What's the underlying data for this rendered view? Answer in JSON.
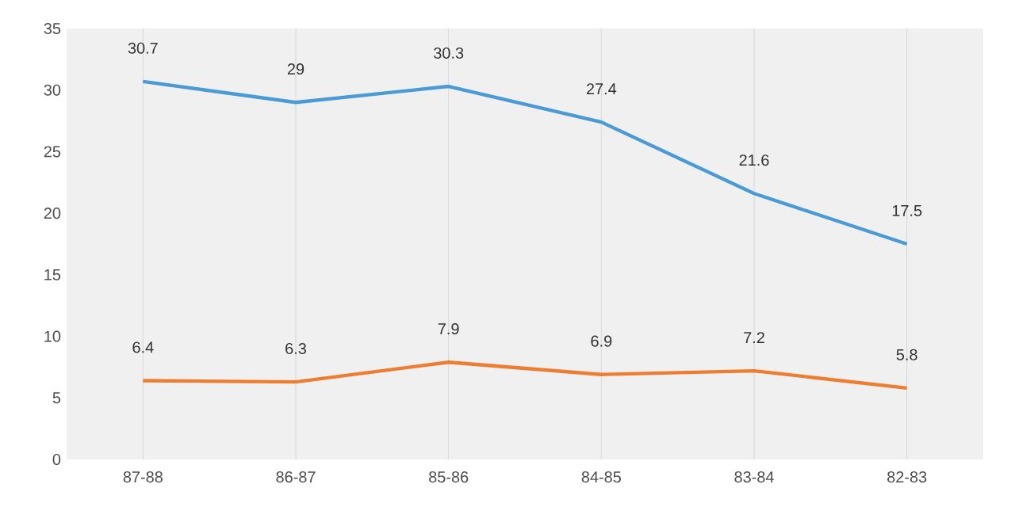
{
  "chart_data": {
    "type": "line",
    "categories": [
      "87-88",
      "86-87",
      "85-86",
      "84-85",
      "83-84",
      "82-83"
    ],
    "series": [
      {
        "color": "#4a9bd5",
        "values": [
          30.7,
          29,
          30.3,
          27.4,
          21.6,
          17.5
        ]
      },
      {
        "color": "#ed7d31",
        "values": [
          6.4,
          6.3,
          7.9,
          6.9,
          7.2,
          5.8
        ]
      }
    ],
    "ylim": [
      0,
      35
    ],
    "yticks": [
      0,
      5,
      10,
      15,
      20,
      25,
      30,
      35
    ],
    "grid": "x",
    "data_labels": true,
    "marker": "none",
    "line_style": "solid"
  }
}
